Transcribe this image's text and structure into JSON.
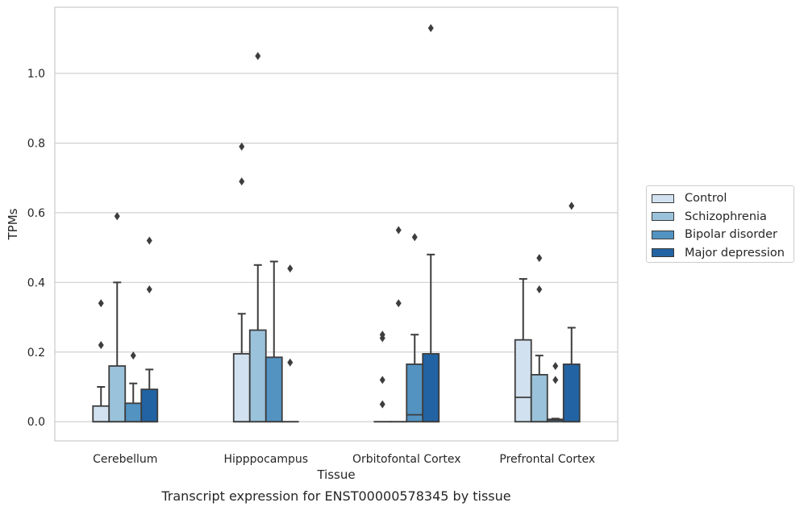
{
  "caption": "Transcript expression for ENST00000578345 by tissue",
  "chart_data": {
    "type": "box",
    "xlabel": "Tissue",
    "ylabel": "TPMs",
    "ylim": [
      -0.055,
      1.19
    ],
    "yticks": [
      "0.0",
      "0.2",
      "0.4",
      "0.6",
      "0.8",
      "1.0"
    ],
    "grid": true,
    "legend_position": "right",
    "categories": [
      "Cerebellum",
      "Hipppocampus",
      "Orbitofontal Cortex",
      "Prefrontal Cortex"
    ],
    "series": [
      {
        "name": "Control",
        "color": "#d1e1f0",
        "boxes": [
          {
            "q1": 0.0,
            "median": 0.0,
            "q3": 0.045,
            "whisker_low": 0.0,
            "whisker_high": 0.1,
            "outliers": [
              0.22,
              0.34
            ]
          },
          {
            "q1": 0.0,
            "median": 0.0,
            "q3": 0.195,
            "whisker_low": 0.0,
            "whisker_high": 0.31,
            "outliers": [
              0.69,
              0.79
            ]
          },
          {
            "q1": 0.0,
            "median": 0.0,
            "q3": 0.0,
            "whisker_low": 0.0,
            "whisker_high": 0.0,
            "outliers": [
              0.05,
              0.12,
              0.24,
              0.25
            ]
          },
          {
            "q1": 0.0,
            "median": 0.07,
            "q3": 0.235,
            "whisker_low": 0.0,
            "whisker_high": 0.41,
            "outliers": []
          }
        ]
      },
      {
        "name": "Schizophrenia",
        "color": "#9ac2da",
        "boxes": [
          {
            "q1": 0.0,
            "median": 0.0,
            "q3": 0.16,
            "whisker_low": 0.0,
            "whisker_high": 0.4,
            "outliers": [
              0.59
            ]
          },
          {
            "q1": 0.0,
            "median": 0.0,
            "q3": 0.263,
            "whisker_low": 0.0,
            "whisker_high": 0.45,
            "outliers": [
              1.05
            ]
          },
          {
            "q1": 0.0,
            "median": 0.0,
            "q3": 0.0,
            "whisker_low": 0.0,
            "whisker_high": 0.0,
            "outliers": [
              0.34,
              0.55
            ]
          },
          {
            "q1": 0.0,
            "median": 0.0,
            "q3": 0.135,
            "whisker_low": 0.0,
            "whisker_high": 0.19,
            "outliers": [
              0.38,
              0.47
            ]
          }
        ]
      },
      {
        "name": "Bipolar disorder",
        "color": "#5293c2",
        "boxes": [
          {
            "q1": 0.0,
            "median": 0.0,
            "q3": 0.053,
            "whisker_low": 0.0,
            "whisker_high": 0.11,
            "outliers": [
              0.19
            ]
          },
          {
            "q1": 0.0,
            "median": 0.0,
            "q3": 0.185,
            "whisker_low": 0.0,
            "whisker_high": 0.46,
            "outliers": []
          },
          {
            "q1": 0.0,
            "median": 0.02,
            "q3": 0.165,
            "whisker_low": 0.0,
            "whisker_high": 0.25,
            "outliers": [
              0.53
            ]
          },
          {
            "q1": 0.0,
            "median": 0.005,
            "q3": 0.007,
            "whisker_low": 0.0,
            "whisker_high": 0.009,
            "outliers": [
              0.12,
              0.16
            ]
          }
        ]
      },
      {
        "name": "Major depression",
        "color": "#2163a3",
        "boxes": [
          {
            "q1": 0.0,
            "median": 0.0,
            "q3": 0.093,
            "whisker_low": 0.0,
            "whisker_high": 0.15,
            "outliers": [
              0.38,
              0.52
            ]
          },
          {
            "q1": 0.0,
            "median": 0.0,
            "q3": 0.0,
            "whisker_low": 0.0,
            "whisker_high": 0.0,
            "outliers": [
              0.17,
              0.44
            ]
          },
          {
            "q1": 0.0,
            "median": 0.0,
            "q3": 0.195,
            "whisker_low": 0.0,
            "whisker_high": 0.48,
            "outliers": [
              1.13
            ]
          },
          {
            "q1": 0.0,
            "median": 0.0,
            "q3": 0.165,
            "whisker_low": 0.0,
            "whisker_high": 0.27,
            "outliers": [
              0.62
            ]
          }
        ]
      }
    ]
  }
}
